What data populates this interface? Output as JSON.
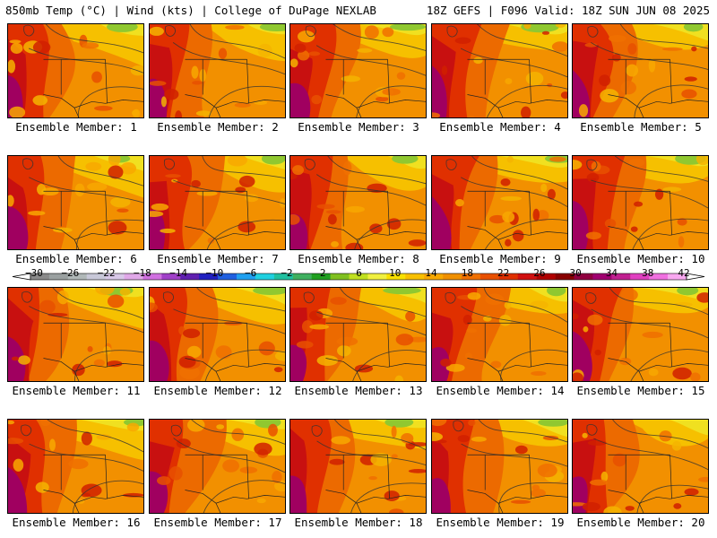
{
  "header": {
    "left": "850mb Temp (°C) | Wind (kts) | College of DuPage NEXLAB",
    "right": "18Z GEFS | F096 Valid: 18Z SUN JUN 08 2025"
  },
  "members": [
    {
      "label": "Ensemble Member: 1"
    },
    {
      "label": "Ensemble Member: 2"
    },
    {
      "label": "Ensemble Member: 3"
    },
    {
      "label": "Ensemble Member: 4"
    },
    {
      "label": "Ensemble Member: 5"
    },
    {
      "label": "Ensemble Member: 6"
    },
    {
      "label": "Ensemble Member: 7"
    },
    {
      "label": "Ensemble Member: 8"
    },
    {
      "label": "Ensemble Member: 9"
    },
    {
      "label": "Ensemble Member: 10"
    },
    {
      "label": "Ensemble Member: 11"
    },
    {
      "label": "Ensemble Member: 12"
    },
    {
      "label": "Ensemble Member: 13"
    },
    {
      "label": "Ensemble Member: 14"
    },
    {
      "label": "Ensemble Member: 15"
    },
    {
      "label": "Ensemble Member: 16"
    },
    {
      "label": "Ensemble Member: 17"
    },
    {
      "label": "Ensemble Member: 18"
    },
    {
      "label": "Ensemble Member: 19"
    },
    {
      "label": "Ensemble Member: 20"
    }
  ],
  "colorbar": {
    "tick_labels": [
      "−30",
      "−26",
      "−22",
      "−18",
      "−14",
      "−10",
      "−6",
      "−2",
      "2",
      "6",
      "10",
      "14",
      "18",
      "22",
      "26",
      "30",
      "34",
      "38",
      "42"
    ],
    "colors": [
      "#8a8a8a",
      "#9aa0a0",
      "#b0b8b8",
      "#c8c8d8",
      "#d8c8e8",
      "#e0a8e8",
      "#d070e0",
      "#a040c8",
      "#6020b0",
      "#2020c0",
      "#2060e0",
      "#20a0f0",
      "#20d0e0",
      "#20c0a0",
      "#40b060",
      "#20a020",
      "#80c020",
      "#c0e020",
      "#f0f040",
      "#f8e000",
      "#f8c000",
      "#f8a800",
      "#f09000",
      "#f07000",
      "#e85000",
      "#e03000",
      "#d01010",
      "#b00000",
      "#880000",
      "#900040",
      "#a00070",
      "#c02090",
      "#e040c0",
      "#f070e0",
      "#f8a8f0"
    ]
  }
}
